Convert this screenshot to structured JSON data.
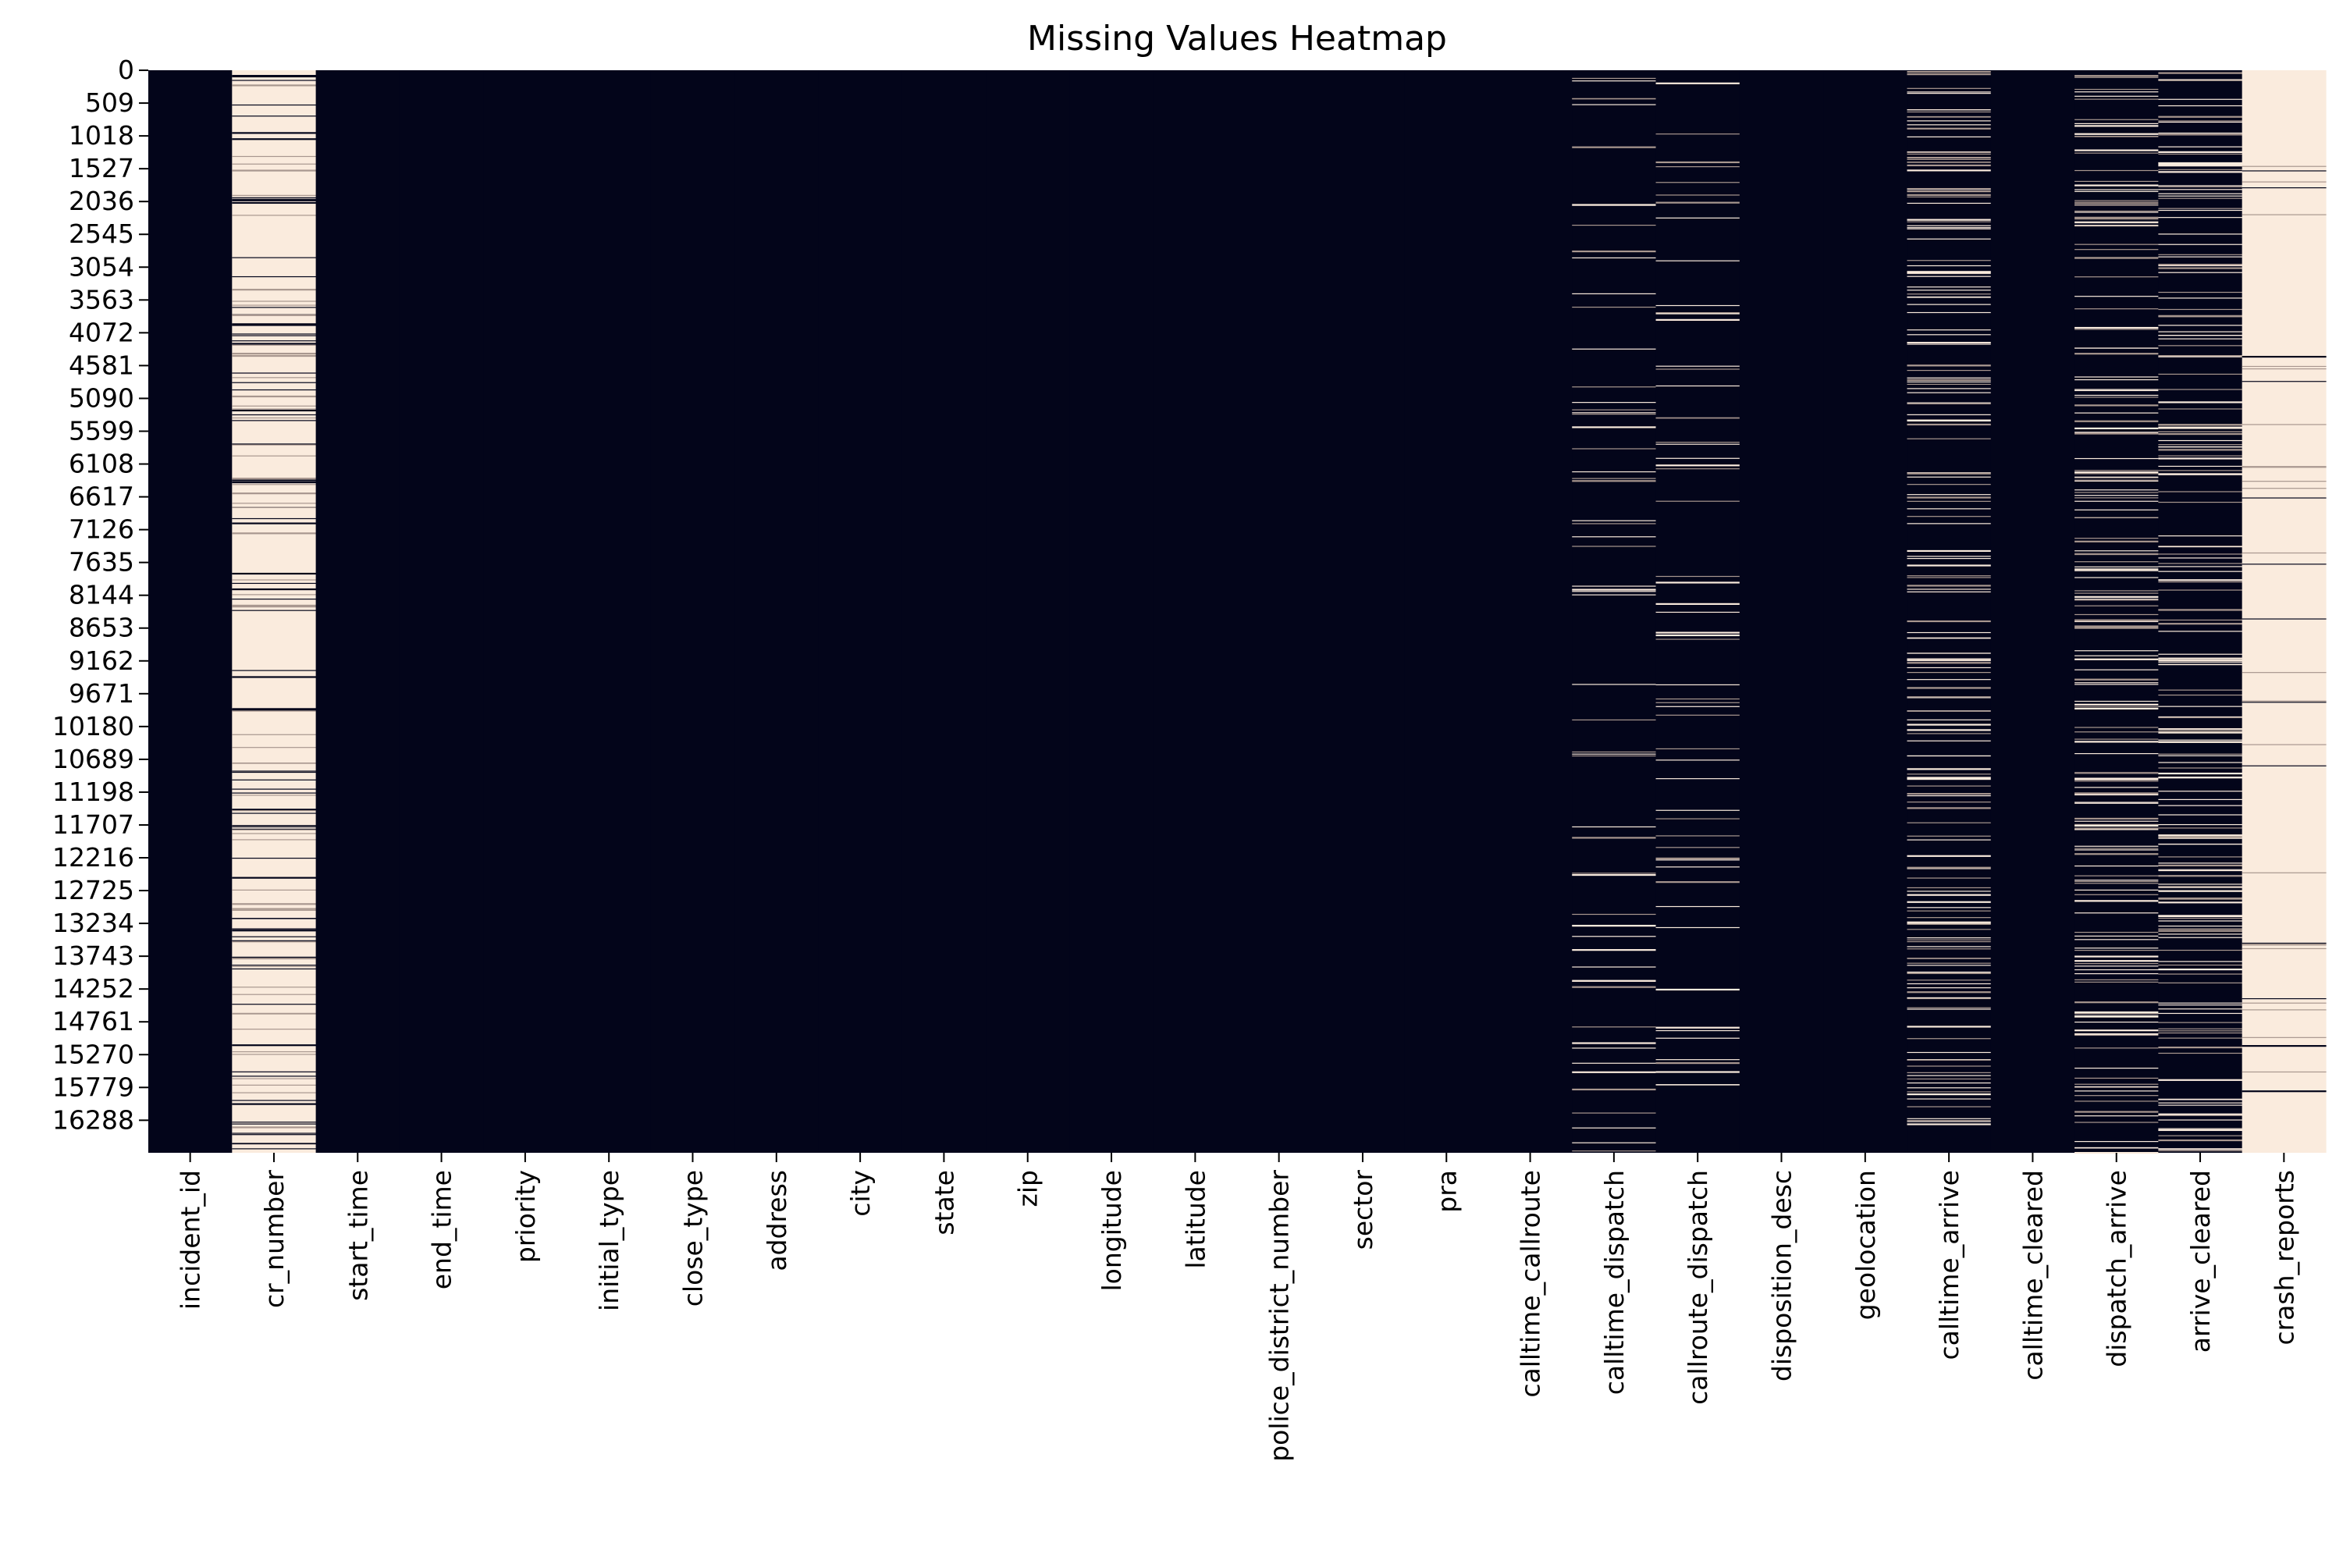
{
  "chart_data": {
    "type": "heatmap",
    "title": "Missing Values Heatmap",
    "xlabel": "",
    "ylabel": "",
    "colors": {
      "present": "#03051a",
      "missing": "#faebdd",
      "mixed": "#a8978f"
    },
    "row_count": 16793,
    "y_tick_labels": [
      "0",
      "509",
      "1018",
      "1527",
      "2036",
      "2545",
      "3054",
      "3563",
      "4072",
      "4581",
      "5090",
      "5599",
      "6108",
      "6617",
      "7126",
      "7635",
      "8144",
      "8653",
      "9162",
      "9671",
      "10180",
      "10689",
      "11198",
      "11707",
      "12216",
      "12725",
      "13234",
      "13743",
      "14252",
      "14761",
      "15270",
      "15779",
      "16288"
    ],
    "columns": [
      {
        "name": "incident_id",
        "missing_fraction": 0.0
      },
      {
        "name": "cr_number",
        "missing_fraction": 0.85
      },
      {
        "name": "start_time",
        "missing_fraction": 0.0
      },
      {
        "name": "end_time",
        "missing_fraction": 0.0
      },
      {
        "name": "priority",
        "missing_fraction": 0.0
      },
      {
        "name": "initial_type",
        "missing_fraction": 0.0
      },
      {
        "name": "close_type",
        "missing_fraction": 0.0
      },
      {
        "name": "address",
        "missing_fraction": 0.0
      },
      {
        "name": "city",
        "missing_fraction": 0.0
      },
      {
        "name": "state",
        "missing_fraction": 0.0
      },
      {
        "name": "zip",
        "missing_fraction": 0.0
      },
      {
        "name": "longitude",
        "missing_fraction": 0.0
      },
      {
        "name": "latitude",
        "missing_fraction": 0.0
      },
      {
        "name": "police_district_number",
        "missing_fraction": 0.0
      },
      {
        "name": "sector",
        "missing_fraction": 0.0
      },
      {
        "name": "pra",
        "missing_fraction": 0.0
      },
      {
        "name": "calltime_callroute",
        "missing_fraction": 0.0
      },
      {
        "name": "calltime_dispatch",
        "missing_fraction": 0.06
      },
      {
        "name": "callroute_dispatch",
        "missing_fraction": 0.06
      },
      {
        "name": "disposition_desc",
        "missing_fraction": 0.0
      },
      {
        "name": "geolocation",
        "missing_fraction": 0.0
      },
      {
        "name": "calltime_arrive",
        "missing_fraction": 0.2
      },
      {
        "name": "calltime_cleared",
        "missing_fraction": 0.0
      },
      {
        "name": "dispatch_arrive",
        "missing_fraction": 0.2
      },
      {
        "name": "arrive_cleared",
        "missing_fraction": 0.2
      },
      {
        "name": "crash_reports",
        "missing_fraction": 0.97
      }
    ]
  }
}
